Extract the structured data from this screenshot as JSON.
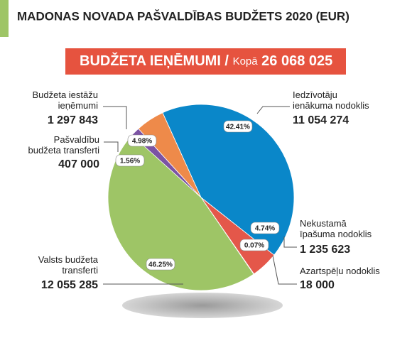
{
  "chart_data": {
    "type": "pie",
    "title": "MADONAS NOVADA PAŠVALDĪBAS BUDŽETS 2020 (EUR)",
    "subtitle": "BUDŽETA IEŅĒMUMI /",
    "total_label": "Kopā",
    "total": "26 068 025",
    "categories": [
      "Iedzīvotāju\nienākuma nodoklis",
      "Nekustamā\nīpašuma nodoklis",
      "Azartspēļu nodoklis",
      "Valsts budžeta\ntransferti",
      "Pašvaldību\nbudžeta transferti",
      "Budžeta iestāžu\nieņēmumi"
    ],
    "values": [
      11054274,
      1235623,
      18000,
      12055285,
      407000,
      1297843
    ],
    "value_labels": [
      "11 054 274",
      "1 235 623",
      "18 000",
      "12 055 285",
      "407 000",
      "1 297 843"
    ],
    "percent_labels": [
      "42.41%",
      "4.74%",
      "0.07%",
      "46.25%",
      "1.56%",
      "4.98%"
    ],
    "colors": [
      "#0a87c9",
      "#e4574a",
      "#e9d36a",
      "#9ec566",
      "#7b53a4",
      "#ee8a4a"
    ]
  }
}
